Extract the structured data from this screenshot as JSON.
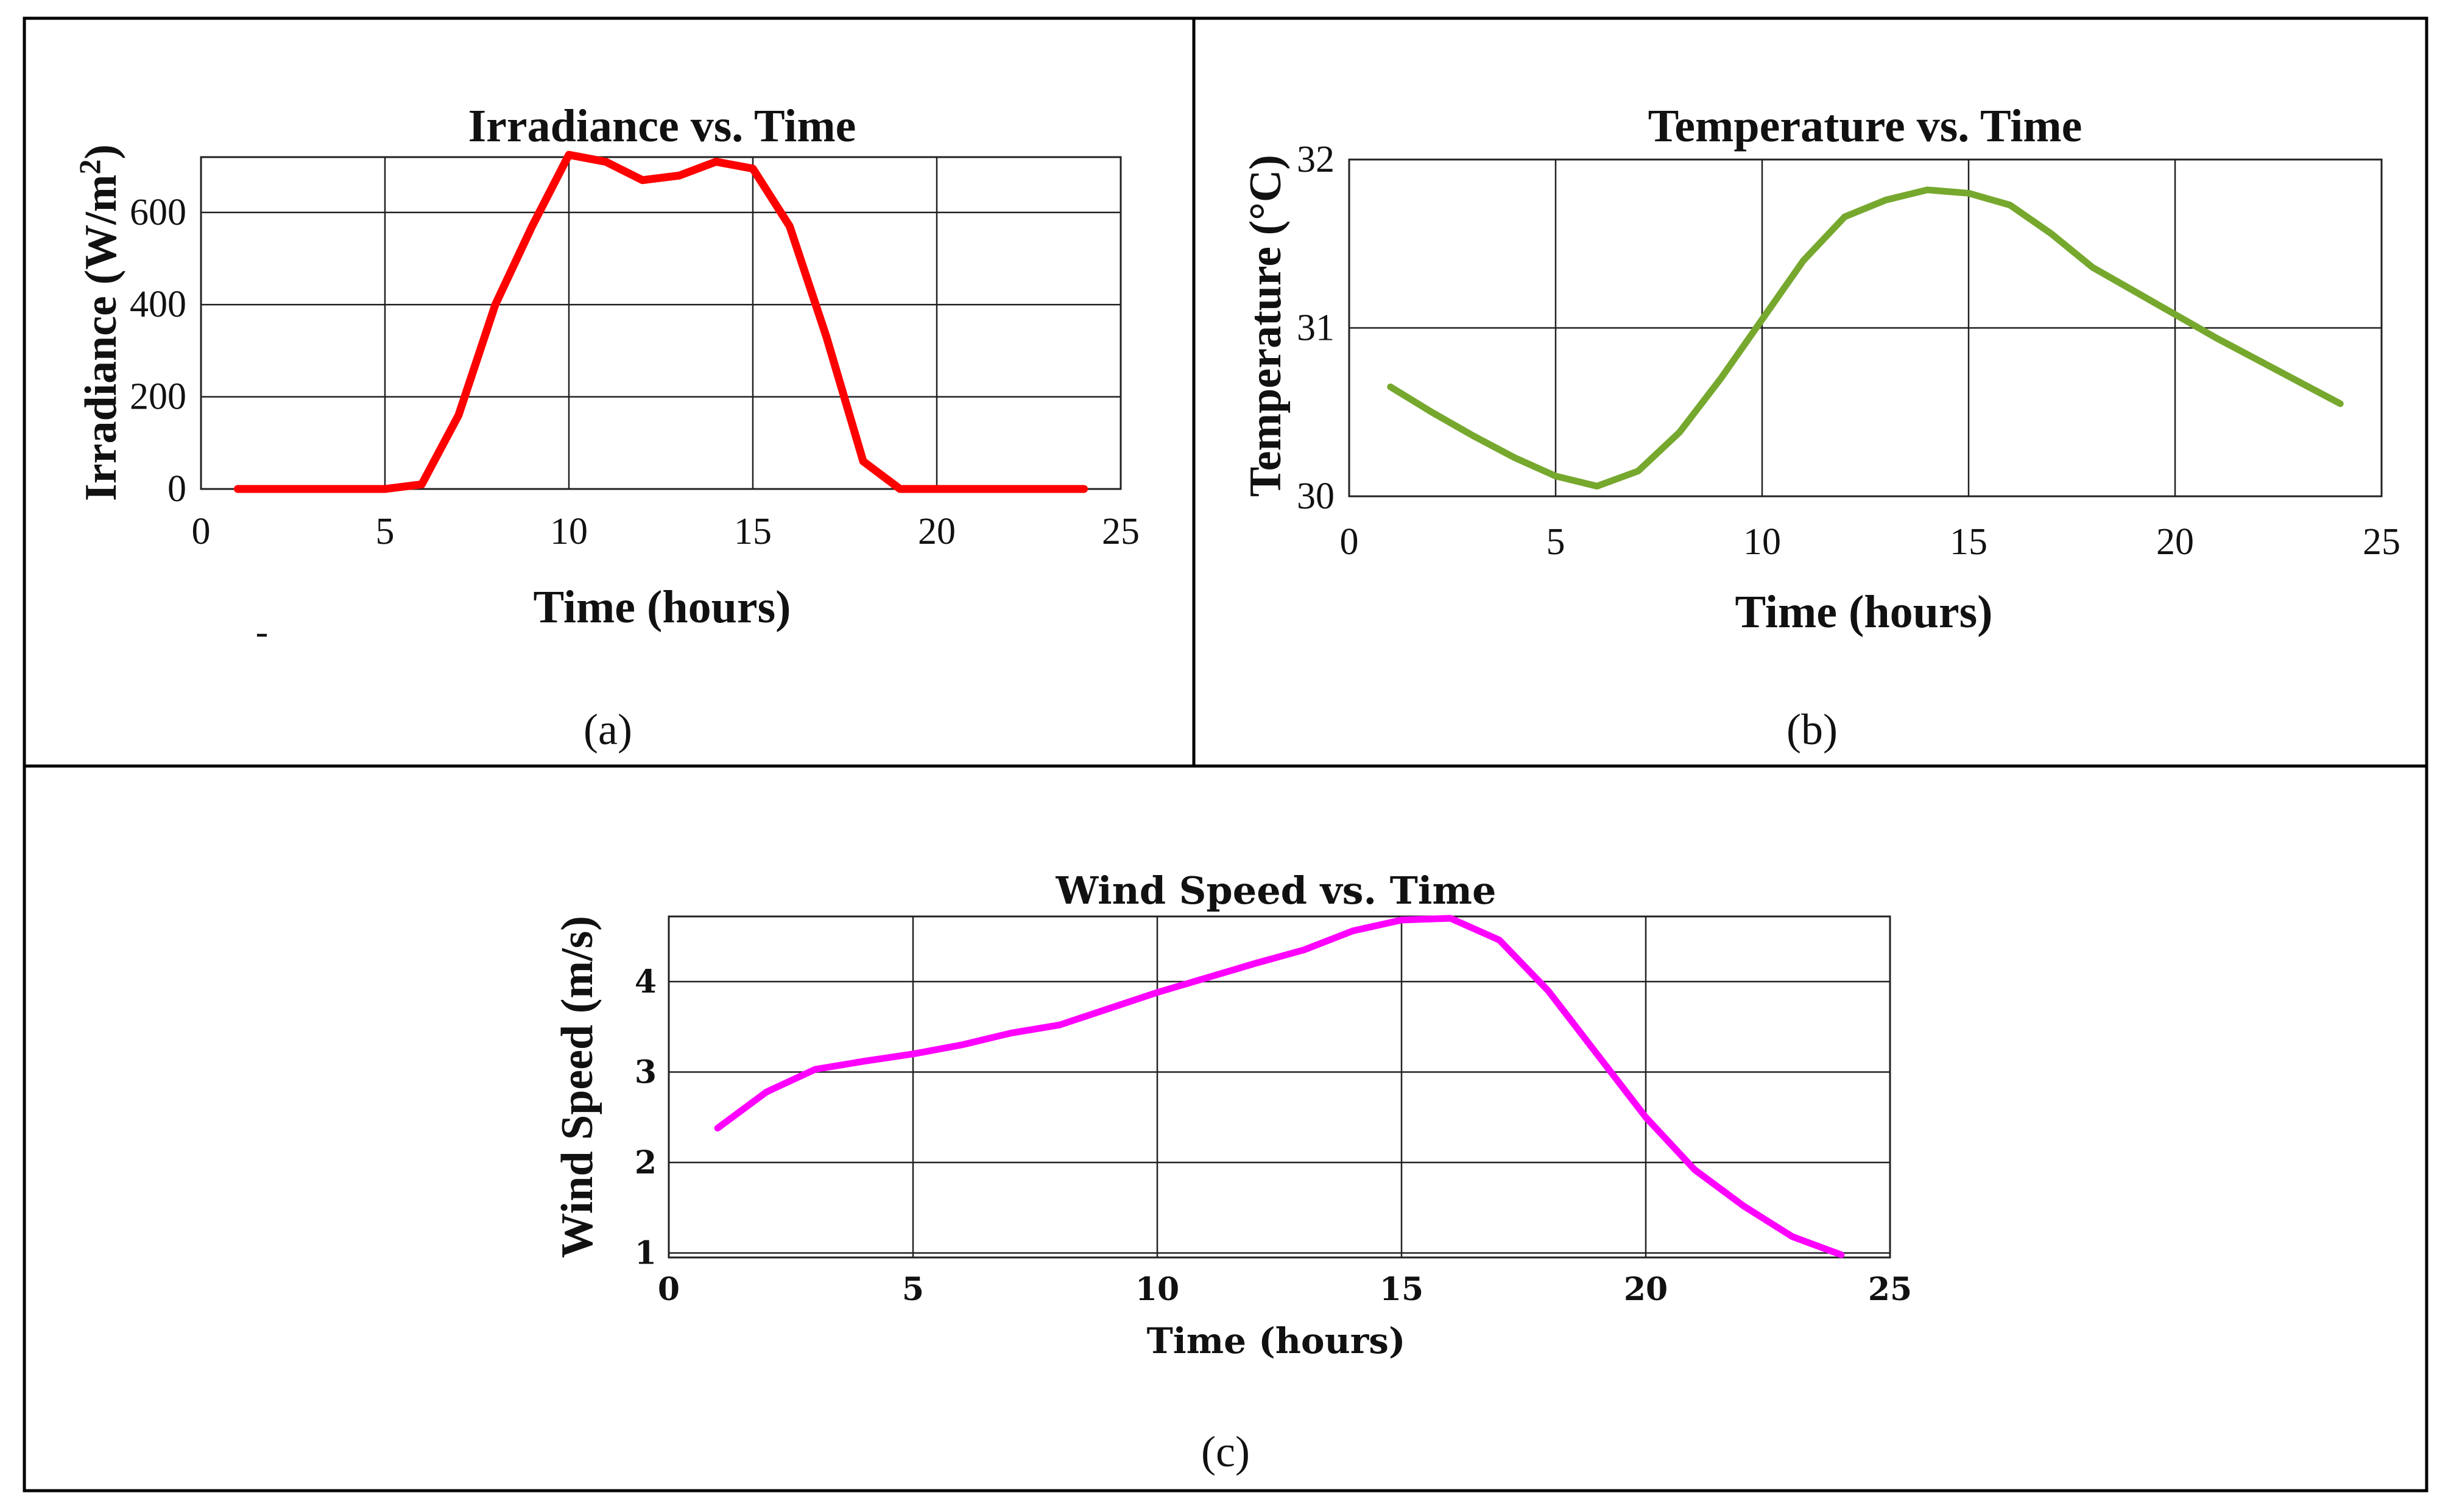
{
  "colors": {
    "irradiance": "#ff0000",
    "temperature": "#76a82e",
    "wind": "#ff00ff"
  },
  "chart_data": [
    {
      "panel": "(a)",
      "type": "line",
      "title": "Irradiance vs. Time",
      "xlabel": "Time (hours)",
      "ylabel": "Irradiance (W/m",
      "ylabel_sup": "2",
      "ylabel_end": ")",
      "xlim": [
        0,
        25
      ],
      "ylim": [
        0,
        720
      ],
      "xticks": [
        0,
        5,
        10,
        15,
        20,
        25
      ],
      "yticks": [
        0,
        200,
        400,
        600
      ],
      "grid": true,
      "series": [
        {
          "name": "Irradiance",
          "color": "#ff0000",
          "x": [
            1,
            2,
            3,
            4,
            5,
            6,
            7,
            8,
            9,
            10,
            11,
            12,
            13,
            14,
            15,
            16,
            17,
            18,
            19,
            20,
            21,
            22,
            23,
            24
          ],
          "values": [
            0,
            0,
            0,
            0,
            0,
            10,
            160,
            400,
            570,
            725,
            710,
            670,
            680,
            710,
            695,
            570,
            330,
            60,
            0,
            0,
            0,
            0,
            0,
            0
          ]
        }
      ],
      "stray_mark": "-"
    },
    {
      "panel": "(b)",
      "type": "line",
      "title": "Temperature vs. Time",
      "xlabel": "Time (hours)",
      "ylabel": "Temperature (°C)",
      "xlim": [
        0,
        25
      ],
      "ylim": [
        30,
        32
      ],
      "xticks": [
        0,
        5,
        10,
        15,
        20,
        25
      ],
      "yticks": [
        30,
        31,
        32
      ],
      "grid": true,
      "series": [
        {
          "name": "Temperature",
          "color": "#76a82e",
          "x": [
            1,
            2,
            3,
            4,
            5,
            6,
            7,
            8,
            9,
            10,
            11,
            12,
            13,
            14,
            15,
            16,
            17,
            18,
            19,
            20,
            21,
            22,
            23,
            24
          ],
          "values": [
            30.65,
            30.5,
            30.36,
            30.23,
            30.12,
            30.06,
            30.15,
            30.38,
            30.7,
            31.05,
            31.4,
            31.66,
            31.76,
            31.82,
            31.8,
            31.73,
            31.56,
            31.36,
            31.22,
            31.08,
            30.94,
            30.81,
            30.68,
            30.55
          ]
        }
      ]
    },
    {
      "panel": "(c)",
      "type": "line",
      "title": "Wind Speed vs. Time",
      "xlabel": "Time (hours)",
      "ylabel": "Wind Speed (m/s)",
      "xlim": [
        0,
        25
      ],
      "ylim": [
        0.95,
        4.72
      ],
      "xticks": [
        0,
        5,
        10,
        15,
        20,
        25
      ],
      "yticks": [
        1,
        2,
        3,
        4
      ],
      "grid": true,
      "series": [
        {
          "name": "Wind Speed",
          "color": "#ff00ff",
          "x": [
            1,
            2,
            3,
            4,
            5,
            6,
            7,
            8,
            9,
            10,
            11,
            12,
            13,
            14,
            15,
            16,
            17,
            18,
            19,
            20,
            21,
            22,
            23,
            24
          ],
          "values": [
            2.38,
            2.78,
            3.03,
            3.12,
            3.2,
            3.3,
            3.43,
            3.52,
            3.7,
            3.88,
            4.04,
            4.2,
            4.35,
            4.56,
            4.68,
            4.7,
            4.46,
            3.9,
            3.2,
            2.5,
            1.92,
            1.52,
            1.18,
            0.98
          ]
        }
      ]
    }
  ]
}
